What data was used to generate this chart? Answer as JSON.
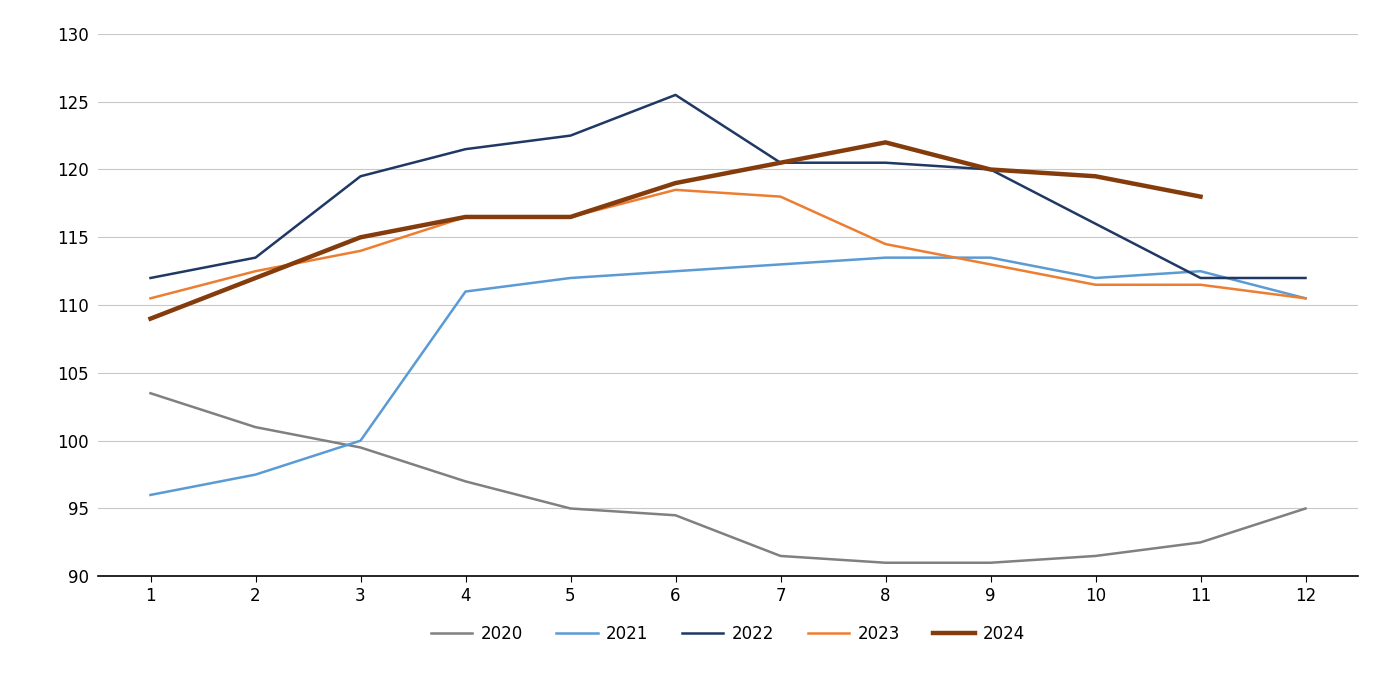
{
  "months": [
    1,
    2,
    3,
    4,
    5,
    6,
    7,
    8,
    9,
    10,
    11,
    12
  ],
  "series": {
    "2020": [
      103.5,
      101.0,
      99.5,
      97.0,
      95.0,
      94.5,
      91.5,
      91.0,
      91.0,
      91.5,
      92.5,
      95.0
    ],
    "2021": [
      96.0,
      97.5,
      100.0,
      111.0,
      112.0,
      112.5,
      113.0,
      113.5,
      113.5,
      112.0,
      112.5,
      110.5
    ],
    "2022": [
      112.0,
      113.5,
      119.5,
      121.5,
      122.5,
      125.5,
      120.5,
      120.5,
      120.0,
      116.0,
      112.0,
      112.0
    ],
    "2023": [
      110.5,
      112.5,
      114.0,
      116.5,
      116.5,
      118.5,
      118.0,
      114.5,
      113.0,
      111.5,
      111.5,
      110.5
    ],
    "2024": [
      109.0,
      112.0,
      115.0,
      116.5,
      116.5,
      119.0,
      120.5,
      122.0,
      120.0,
      119.5,
      118.0,
      null
    ]
  },
  "colors": {
    "2020": "#808080",
    "2021": "#5B9BD5",
    "2022": "#203864",
    "2023": "#ED7D31",
    "2024": "#843C0C"
  },
  "linewidths": {
    "2020": 1.8,
    "2021": 1.8,
    "2022": 1.8,
    "2023": 1.8,
    "2024": 3.2
  },
  "ylim": [
    90,
    130
  ],
  "yticks": [
    90,
    95,
    100,
    105,
    110,
    115,
    120,
    125,
    130
  ],
  "xticks": [
    1,
    2,
    3,
    4,
    5,
    6,
    7,
    8,
    9,
    10,
    11,
    12
  ],
  "legend_order": [
    "2020",
    "2021",
    "2022",
    "2023",
    "2024"
  ],
  "background_color": "#FFFFFF",
  "grid_color": "#C8C8C8"
}
